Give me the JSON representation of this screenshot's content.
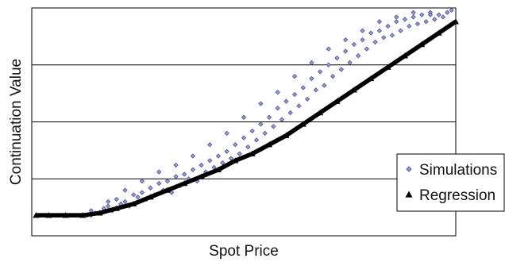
{
  "chart_data": {
    "type": "scatter",
    "title": "",
    "xlabel": "Spot Price",
    "ylabel": "Continuation Value",
    "xlim": [
      0,
      100
    ],
    "ylim": [
      0,
      100
    ],
    "grid": "horizontal",
    "gridlines_y": [
      25,
      50,
      75
    ],
    "legend_placement": "right",
    "legend": [
      "Simulations",
      "Regression"
    ],
    "series": [
      {
        "name": "Simulations",
        "marker": "diamond",
        "color": "#3b3f8f",
        "fill": "#9aa0cc",
        "x": [
          2,
          6,
          10,
          13,
          14,
          15,
          17,
          18,
          19,
          20,
          21,
          22,
          23,
          24,
          25,
          26,
          27,
          28,
          29,
          30,
          31,
          32,
          33,
          34,
          35,
          36,
          37,
          38,
          39,
          40,
          41,
          42,
          43,
          44,
          45,
          46,
          47,
          48,
          49,
          50,
          51,
          52,
          53,
          54,
          55,
          56,
          57,
          58,
          59,
          60,
          61,
          62,
          63,
          64,
          65,
          66,
          67,
          68,
          69,
          70,
          71,
          72,
          73,
          74,
          75,
          76,
          77,
          78,
          79,
          80,
          81,
          82,
          83,
          84,
          85,
          86,
          87,
          88,
          89,
          90,
          91,
          92,
          93,
          94,
          95,
          96,
          97,
          98,
          99,
          14,
          18,
          22,
          26,
          30,
          34,
          38,
          42,
          46,
          50,
          54,
          58,
          62,
          66,
          70,
          74,
          78,
          82,
          86,
          90,
          94
        ],
        "y": [
          9,
          9,
          9,
          9,
          9,
          10,
          12,
          13,
          11,
          16,
          14,
          15,
          13,
          18,
          17,
          19,
          16,
          21,
          18,
          23,
          20,
          24,
          19,
          26,
          22,
          27,
          25,
          29,
          24,
          31,
          28,
          33,
          30,
          35,
          32,
          37,
          34,
          40,
          36,
          43,
          39,
          46,
          42,
          49,
          45,
          52,
          48,
          56,
          51,
          59,
          54,
          62,
          57,
          65,
          60,
          69,
          64,
          72,
          66,
          75,
          70,
          78,
          73,
          81,
          76,
          84,
          79,
          86,
          82,
          89,
          85,
          90,
          87,
          92,
          88,
          94,
          90,
          95,
          92,
          96,
          93,
          97,
          94,
          98,
          95,
          97,
          96,
          98,
          99,
          11,
          15,
          20,
          24,
          28,
          31,
          35,
          40,
          45,
          52,
          58,
          63,
          70,
          76,
          82,
          86,
          90,
          94,
          96,
          98,
          97
        ]
      },
      {
        "name": "Regression",
        "marker": "triangle",
        "color": "#000000",
        "x": [
          1,
          4,
          8,
          12,
          16,
          20,
          24,
          28,
          32,
          36,
          40,
          44,
          48,
          52,
          56,
          60,
          64,
          68,
          72,
          76,
          80,
          84,
          88,
          92,
          96,
          100
        ],
        "y": [
          9,
          9,
          9,
          9,
          10,
          12,
          14,
          17,
          20,
          23,
          26,
          29,
          33,
          36,
          40,
          44,
          49,
          54,
          59,
          64,
          69,
          74,
          79,
          84,
          89,
          94
        ]
      }
    ]
  }
}
